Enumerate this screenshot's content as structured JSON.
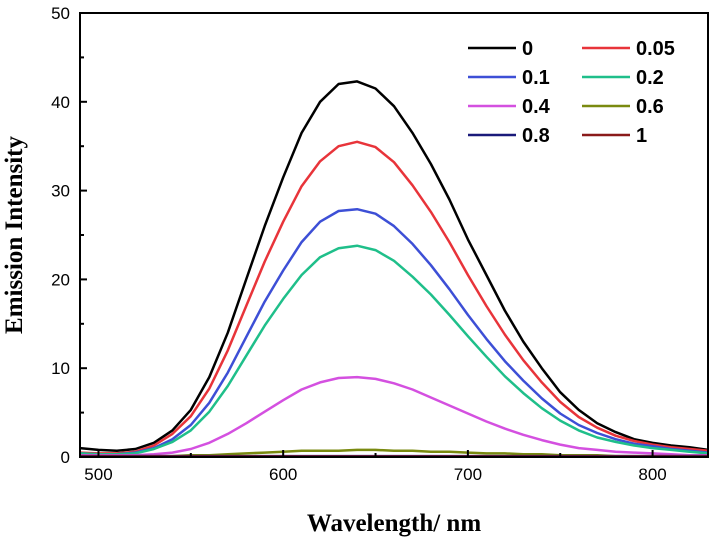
{
  "chart_data": {
    "type": "line",
    "title": "",
    "xlabel": "Wavelength/ nm",
    "ylabel": "Emission Intensity",
    "xlim": [
      490,
      830
    ],
    "ylim": [
      0,
      50
    ],
    "xticks": [
      500,
      600,
      700,
      800
    ],
    "yticks": [
      0,
      10,
      20,
      30,
      40,
      50
    ],
    "xtick_labels": [
      "500",
      "600",
      "700",
      "800"
    ],
    "ytick_labels": [
      "0",
      "10",
      "20",
      "30",
      "40",
      "50"
    ],
    "grid": false,
    "legend_position": "top-right",
    "x": [
      490,
      500,
      510,
      520,
      530,
      540,
      550,
      560,
      570,
      580,
      590,
      600,
      610,
      620,
      630,
      640,
      650,
      660,
      670,
      680,
      690,
      700,
      710,
      720,
      730,
      740,
      750,
      760,
      770,
      780,
      790,
      800,
      810,
      820,
      830
    ],
    "series": [
      {
        "name": "0",
        "color": "#000000",
        "values": [
          1.0,
          0.8,
          0.7,
          0.9,
          1.6,
          3.0,
          5.3,
          9.0,
          14.0,
          20.0,
          26.0,
          31.5,
          36.5,
          40.0,
          42.0,
          42.3,
          41.5,
          39.5,
          36.5,
          33.0,
          29.0,
          24.5,
          20.5,
          16.5,
          13.0,
          10.0,
          7.3,
          5.3,
          3.8,
          2.8,
          2.0,
          1.6,
          1.3,
          1.1,
          0.8
        ]
      },
      {
        "name": "0.05",
        "color": "#e8343a",
        "values": [
          0.5,
          0.4,
          0.4,
          0.6,
          1.3,
          2.6,
          4.6,
          7.7,
          12.0,
          17.0,
          22.0,
          26.5,
          30.5,
          33.3,
          35.0,
          35.5,
          34.9,
          33.2,
          30.6,
          27.6,
          24.2,
          20.5,
          17.0,
          13.8,
          10.9,
          8.4,
          6.2,
          4.5,
          3.3,
          2.4,
          1.8,
          1.4,
          1.1,
          0.9,
          0.7
        ]
      },
      {
        "name": "0.1",
        "color": "#3d4fd6",
        "values": [
          0.4,
          0.3,
          0.3,
          0.5,
          1.0,
          2.0,
          3.6,
          6.1,
          9.5,
          13.5,
          17.5,
          21.0,
          24.2,
          26.5,
          27.7,
          27.9,
          27.4,
          26.0,
          24.0,
          21.6,
          18.9,
          16.0,
          13.3,
          10.8,
          8.6,
          6.6,
          4.9,
          3.6,
          2.7,
          2.0,
          1.5,
          1.2,
          0.9,
          0.7,
          0.5
        ]
      },
      {
        "name": "0.2",
        "color": "#1fbf8a",
        "values": [
          0.4,
          0.3,
          0.3,
          0.4,
          0.9,
          1.7,
          3.0,
          5.1,
          8.0,
          11.4,
          14.8,
          17.8,
          20.5,
          22.5,
          23.5,
          23.8,
          23.3,
          22.1,
          20.3,
          18.3,
          16.0,
          13.6,
          11.3,
          9.1,
          7.2,
          5.5,
          4.1,
          3.0,
          2.2,
          1.7,
          1.3,
          1.0,
          0.8,
          0.6,
          0.4
        ]
      },
      {
        "name": "0.4",
        "color": "#d450e0",
        "values": [
          0.2,
          0.2,
          0.2,
          0.2,
          0.3,
          0.5,
          0.9,
          1.6,
          2.6,
          3.8,
          5.1,
          6.4,
          7.6,
          8.4,
          8.9,
          9.0,
          8.8,
          8.3,
          7.6,
          6.7,
          5.8,
          4.9,
          4.0,
          3.2,
          2.5,
          1.9,
          1.4,
          1.0,
          0.8,
          0.6,
          0.5,
          0.4,
          0.3,
          0.2,
          0.2
        ]
      },
      {
        "name": "0.6",
        "color": "#7a8a10",
        "values": [
          0.1,
          0.1,
          0.1,
          0.1,
          0.1,
          0.1,
          0.2,
          0.2,
          0.3,
          0.4,
          0.5,
          0.6,
          0.7,
          0.7,
          0.7,
          0.8,
          0.8,
          0.7,
          0.7,
          0.6,
          0.6,
          0.5,
          0.4,
          0.4,
          0.3,
          0.3,
          0.2,
          0.2,
          0.2,
          0.1,
          0.1,
          0.1,
          0.1,
          0.1,
          0.1
        ]
      },
      {
        "name": "0.8",
        "color": "#1a1a7a",
        "values": [
          0.1,
          0.1,
          0.1,
          0.1,
          0.1,
          0.1,
          0.1,
          0.1,
          0.1,
          0.1,
          0.1,
          0.1,
          0.1,
          0.1,
          0.1,
          0.1,
          0.1,
          0.1,
          0.1,
          0.1,
          0.1,
          0.1,
          0.1,
          0.1,
          0.1,
          0.1,
          0.1,
          0.1,
          0.1,
          0.1,
          0.1,
          0.1,
          0.1,
          0.1,
          0.1
        ]
      },
      {
        "name": "1",
        "color": "#8a1a1a",
        "values": [
          0.05,
          0.05,
          0.05,
          0.05,
          0.05,
          0.05,
          0.05,
          0.05,
          0.05,
          0.05,
          0.05,
          0.05,
          0.05,
          0.05,
          0.05,
          0.05,
          0.05,
          0.05,
          0.05,
          0.05,
          0.05,
          0.05,
          0.05,
          0.05,
          0.05,
          0.05,
          0.05,
          0.05,
          0.05,
          0.05,
          0.05,
          0.05,
          0.05,
          0.05,
          0.05
        ]
      }
    ]
  }
}
